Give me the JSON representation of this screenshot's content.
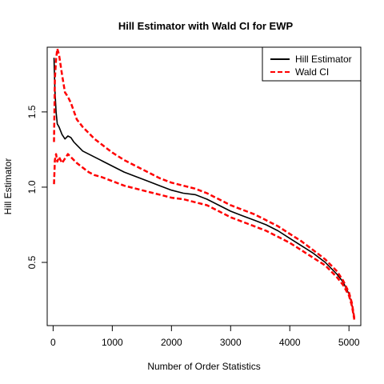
{
  "chart_data": {
    "type": "line",
    "title": "Hill Estimator with Wald CI for EWP",
    "xlabel": "Number of Order Statistics",
    "ylabel": "Hill Estimator",
    "xlim": [
      -100,
      5200
    ],
    "ylim": [
      0.08,
      1.93
    ],
    "xticks": [
      0,
      1000,
      2000,
      3000,
      4000,
      5000
    ],
    "yticks": [
      0.5,
      1.0,
      1.5
    ],
    "xtick_labels": [
      "0",
      "1000",
      "2000",
      "3000",
      "4000",
      "5000"
    ],
    "ytick_labels": [
      "0.5",
      "1.0",
      "1.5"
    ],
    "legend_position": "top-right",
    "legend": [
      "Hill Estimator",
      "Wald CI"
    ],
    "series": [
      {
        "name": "Hill Estimator",
        "color": "#000000",
        "style": "solid",
        "x": [
          15,
          30,
          50,
          70,
          100,
          150,
          200,
          250,
          300,
          350,
          400,
          500,
          600,
          700,
          800,
          1000,
          1200,
          1400,
          1600,
          1800,
          2000,
          2200,
          2400,
          2600,
          2800,
          3000,
          3200,
          3400,
          3600,
          3800,
          4000,
          4200,
          4400,
          4600,
          4700,
          4800,
          4900,
          5000,
          5050,
          5090
        ],
        "y": [
          1.86,
          1.65,
          1.5,
          1.42,
          1.4,
          1.35,
          1.32,
          1.34,
          1.33,
          1.3,
          1.28,
          1.24,
          1.22,
          1.2,
          1.18,
          1.14,
          1.1,
          1.07,
          1.04,
          1.01,
          0.98,
          0.96,
          0.95,
          0.92,
          0.88,
          0.84,
          0.81,
          0.78,
          0.75,
          0.71,
          0.66,
          0.61,
          0.56,
          0.5,
          0.46,
          0.42,
          0.37,
          0.29,
          0.22,
          0.13
        ]
      },
      {
        "name": "Wald CI",
        "color": "#ff0000",
        "style": "dashed",
        "x": [
          15,
          30,
          50,
          70,
          100,
          150,
          200,
          250,
          300,
          400,
          500,
          600,
          700,
          800,
          1000,
          1200,
          1400,
          1600,
          1800,
          2000,
          2200,
          2400,
          2600,
          2800,
          3000,
          3200,
          3400,
          3600,
          3800,
          4000,
          4200,
          4400,
          4600,
          4700,
          4800,
          4900,
          5000,
          5050,
          5090
        ],
        "y": [
          1.3,
          1.72,
          1.85,
          1.92,
          1.88,
          1.75,
          1.63,
          1.6,
          1.56,
          1.45,
          1.4,
          1.36,
          1.32,
          1.29,
          1.23,
          1.18,
          1.14,
          1.1,
          1.06,
          1.03,
          1.01,
          0.99,
          0.96,
          0.92,
          0.88,
          0.85,
          0.82,
          0.78,
          0.74,
          0.69,
          0.64,
          0.58,
          0.52,
          0.48,
          0.44,
          0.38,
          0.3,
          0.23,
          0.13
        ]
      },
      {
        "name": "",
        "color": "#ff0000",
        "style": "dashed",
        "x": [
          15,
          30,
          50,
          70,
          100,
          150,
          200,
          250,
          300,
          400,
          500,
          600,
          700,
          800,
          1000,
          1200,
          1400,
          1600,
          1800,
          2000,
          2200,
          2400,
          2600,
          2800,
          3000,
          3200,
          3400,
          3600,
          3800,
          4000,
          4200,
          4400,
          4600,
          4700,
          4800,
          4900,
          5000,
          5050,
          5090
        ],
        "y": [
          1.02,
          1.18,
          1.22,
          1.17,
          1.2,
          1.16,
          1.19,
          1.22,
          1.2,
          1.16,
          1.13,
          1.1,
          1.08,
          1.07,
          1.04,
          1.01,
          0.99,
          0.97,
          0.95,
          0.93,
          0.92,
          0.9,
          0.88,
          0.84,
          0.8,
          0.77,
          0.74,
          0.71,
          0.67,
          0.63,
          0.58,
          0.53,
          0.48,
          0.44,
          0.4,
          0.35,
          0.28,
          0.21,
          0.12
        ]
      }
    ]
  }
}
